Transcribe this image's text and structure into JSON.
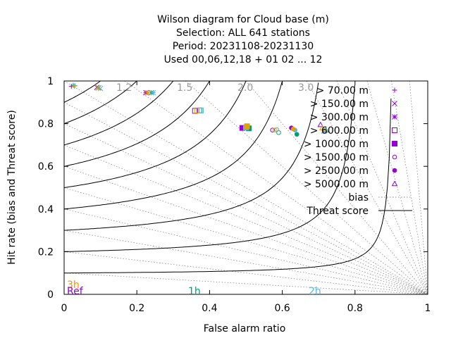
{
  "chart_data": {
    "type": "scatter",
    "title_lines": [
      "Wilson diagram  for Cloud base (m)",
      "Selection: ALL    641 stations",
      "Period: 20231108-20231130",
      "Used  00,06,12,18 + 01 02 ... 12"
    ],
    "xlabel": "False alarm ratio",
    "ylabel": "Hit rate (bias and Threat score)",
    "xlim": [
      0,
      1
    ],
    "ylim": [
      0,
      1
    ],
    "x_ticks": [
      "0",
      "0.2",
      "0.4",
      "0.6",
      "0.8",
      "1"
    ],
    "y_ticks": [
      "0",
      "0.2",
      "0.4",
      "0.6",
      "0.8",
      "1"
    ],
    "bias_isolines": [
      1.2,
      1.5,
      2.0,
      3.0
    ],
    "bias_labels": [
      "1.2",
      "1.5",
      "2.0",
      "3.0"
    ],
    "threat_score_isolines": [
      0.1,
      0.2,
      0.3,
      0.4,
      0.5,
      0.6,
      0.7,
      0.8,
      0.9
    ],
    "lead_time_labels": [
      {
        "text": "3h",
        "color": "#ff8c00"
      },
      {
        "text": "Ref",
        "color": "#9400d3"
      },
      {
        "text": "1h",
        "color": "#009e73"
      },
      {
        "text": "2h",
        "color": "#56b4e9"
      }
    ],
    "colors": {
      "purple": "#9400d3",
      "green": "#009e73",
      "blue": "#56b4e9",
      "orange": "#e69f00"
    },
    "legend_position": "top-right",
    "series": [
      {
        "name": "> 70.00 m",
        "marker": "plus",
        "points": [
          {
            "x": 0.02,
            "y": 0.975,
            "c": "purple"
          },
          {
            "x": 0.025,
            "y": 0.98,
            "c": "green"
          },
          {
            "x": 0.03,
            "y": 0.978,
            "c": "blue"
          },
          {
            "x": 0.028,
            "y": 0.976,
            "c": "orange"
          }
        ]
      },
      {
        "name": "> 150.00 m",
        "marker": "cross",
        "points": [
          {
            "x": 0.09,
            "y": 0.97,
            "c": "purple"
          },
          {
            "x": 0.095,
            "y": 0.968,
            "c": "green"
          },
          {
            "x": 0.1,
            "y": 0.965,
            "c": "blue"
          },
          {
            "x": 0.093,
            "y": 0.967,
            "c": "orange"
          }
        ]
      },
      {
        "name": "> 300.00 m",
        "marker": "star",
        "points": [
          {
            "x": 0.225,
            "y": 0.945,
            "c": "purple"
          },
          {
            "x": 0.24,
            "y": 0.945,
            "c": "green"
          },
          {
            "x": 0.245,
            "y": 0.945,
            "c": "blue"
          },
          {
            "x": 0.23,
            "y": 0.945,
            "c": "orange"
          }
        ]
      },
      {
        "name": "> 600.00 m",
        "marker": "box",
        "points": [
          {
            "x": 0.36,
            "y": 0.86,
            "c": "purple"
          },
          {
            "x": 0.372,
            "y": 0.862,
            "c": "green"
          },
          {
            "x": 0.376,
            "y": 0.862,
            "c": "blue"
          },
          {
            "x": 0.366,
            "y": 0.862,
            "c": "orange"
          }
        ]
      },
      {
        "name": "> 1000.00 m",
        "marker": "fbox",
        "points": [
          {
            "x": 0.49,
            "y": 0.78,
            "c": "purple"
          },
          {
            "x": 0.508,
            "y": 0.778,
            "c": "green"
          },
          {
            "x": 0.5,
            "y": 0.782,
            "c": "blue"
          },
          {
            "x": 0.503,
            "y": 0.788,
            "c": "orange"
          }
        ]
      },
      {
        "name": "> 1500.00 m",
        "marker": "circle",
        "points": [
          {
            "x": 0.573,
            "y": 0.77,
            "c": "purple"
          },
          {
            "x": 0.59,
            "y": 0.758,
            "c": "green"
          },
          {
            "x": 0.585,
            "y": 0.772,
            "c": "blue"
          },
          {
            "x": 0.58,
            "y": 0.77,
            "c": "orange"
          }
        ]
      },
      {
        "name": "> 2500.00 m",
        "marker": "fcircle",
        "points": [
          {
            "x": 0.625,
            "y": 0.78,
            "c": "purple"
          },
          {
            "x": 0.64,
            "y": 0.75,
            "c": "green"
          },
          {
            "x": 0.635,
            "y": 0.77,
            "c": "blue"
          },
          {
            "x": 0.63,
            "y": 0.775,
            "c": "orange"
          }
        ]
      },
      {
        "name": "> 5000.00 m",
        "marker": "triangle",
        "points": [
          {
            "x": 0.705,
            "y": 0.795,
            "c": "purple"
          },
          {
            "x": 0.72,
            "y": 0.77,
            "c": "green"
          },
          {
            "x": 0.715,
            "y": 0.765,
            "c": "blue"
          },
          {
            "x": 0.71,
            "y": 0.78,
            "c": "orange"
          }
        ]
      }
    ],
    "legend_bias_label": "bias",
    "legend_threat_label": "Threat score"
  }
}
